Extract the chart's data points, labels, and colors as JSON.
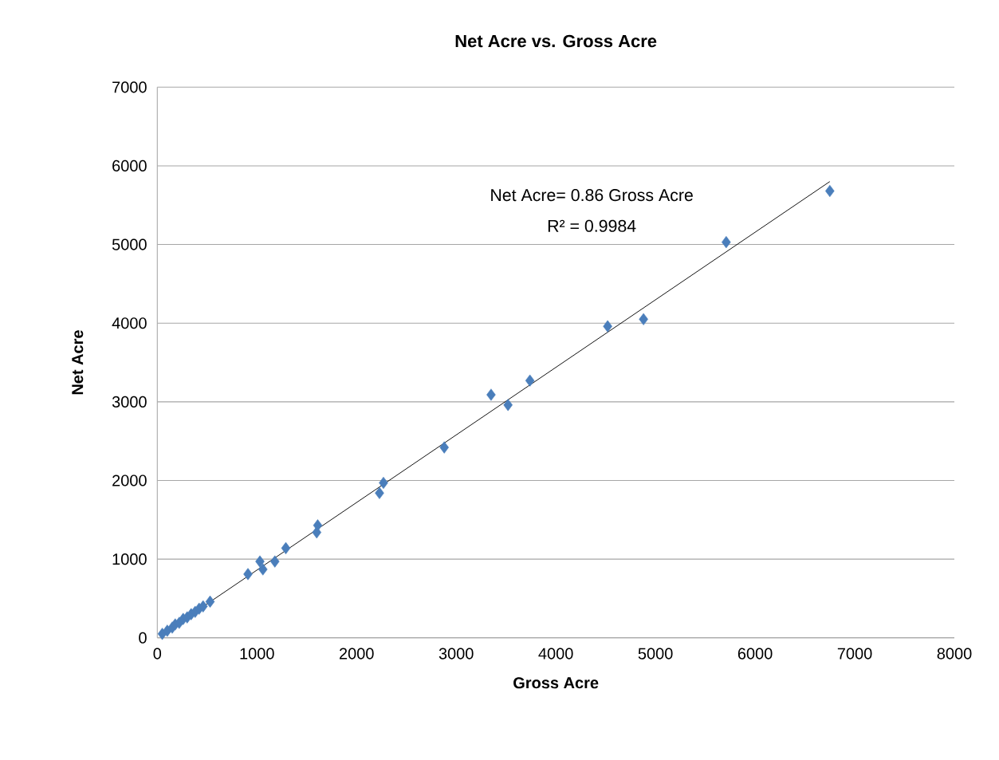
{
  "chart_data": {
    "type": "scatter",
    "title": "Net Acre vs. Gross Acre",
    "xlabel": "Gross Acre",
    "ylabel": "Net Acre",
    "xlim": [
      0,
      8000
    ],
    "ylim": [
      0,
      7000
    ],
    "xticks": [
      0,
      1000,
      2000,
      3000,
      4000,
      5000,
      6000,
      7000,
      8000
    ],
    "yticks": [
      0,
      1000,
      2000,
      3000,
      4000,
      5000,
      6000,
      7000
    ],
    "grid": "y",
    "marker": "diamond",
    "annotations": [
      "Net Acre= 0.86  Gross Acre",
      "R² = 0.9984"
    ],
    "series": [
      {
        "color": "#4a7ebb",
        "x": [
          50,
          100,
          150,
          180,
          220,
          260,
          300,
          340,
          380,
          420,
          460,
          530,
          910,
          1030,
          1060,
          1180,
          1290,
          1600,
          1610,
          2230,
          2270,
          2880,
          3350,
          3520,
          3740,
          4520,
          4880,
          5710,
          6750
        ],
        "values": [
          50,
          90,
          130,
          170,
          190,
          240,
          260,
          300,
          330,
          370,
          400,
          460,
          810,
          970,
          870,
          970,
          1140,
          1340,
          1430,
          1840,
          1970,
          2420,
          3090,
          2960,
          3270,
          3960,
          4050,
          5030,
          5680
        ]
      },
      {
        "type": "line",
        "color": "#000000",
        "marker": "none",
        "x": [
          50,
          6750
        ],
        "values": [
          45,
          5800
        ]
      }
    ]
  }
}
